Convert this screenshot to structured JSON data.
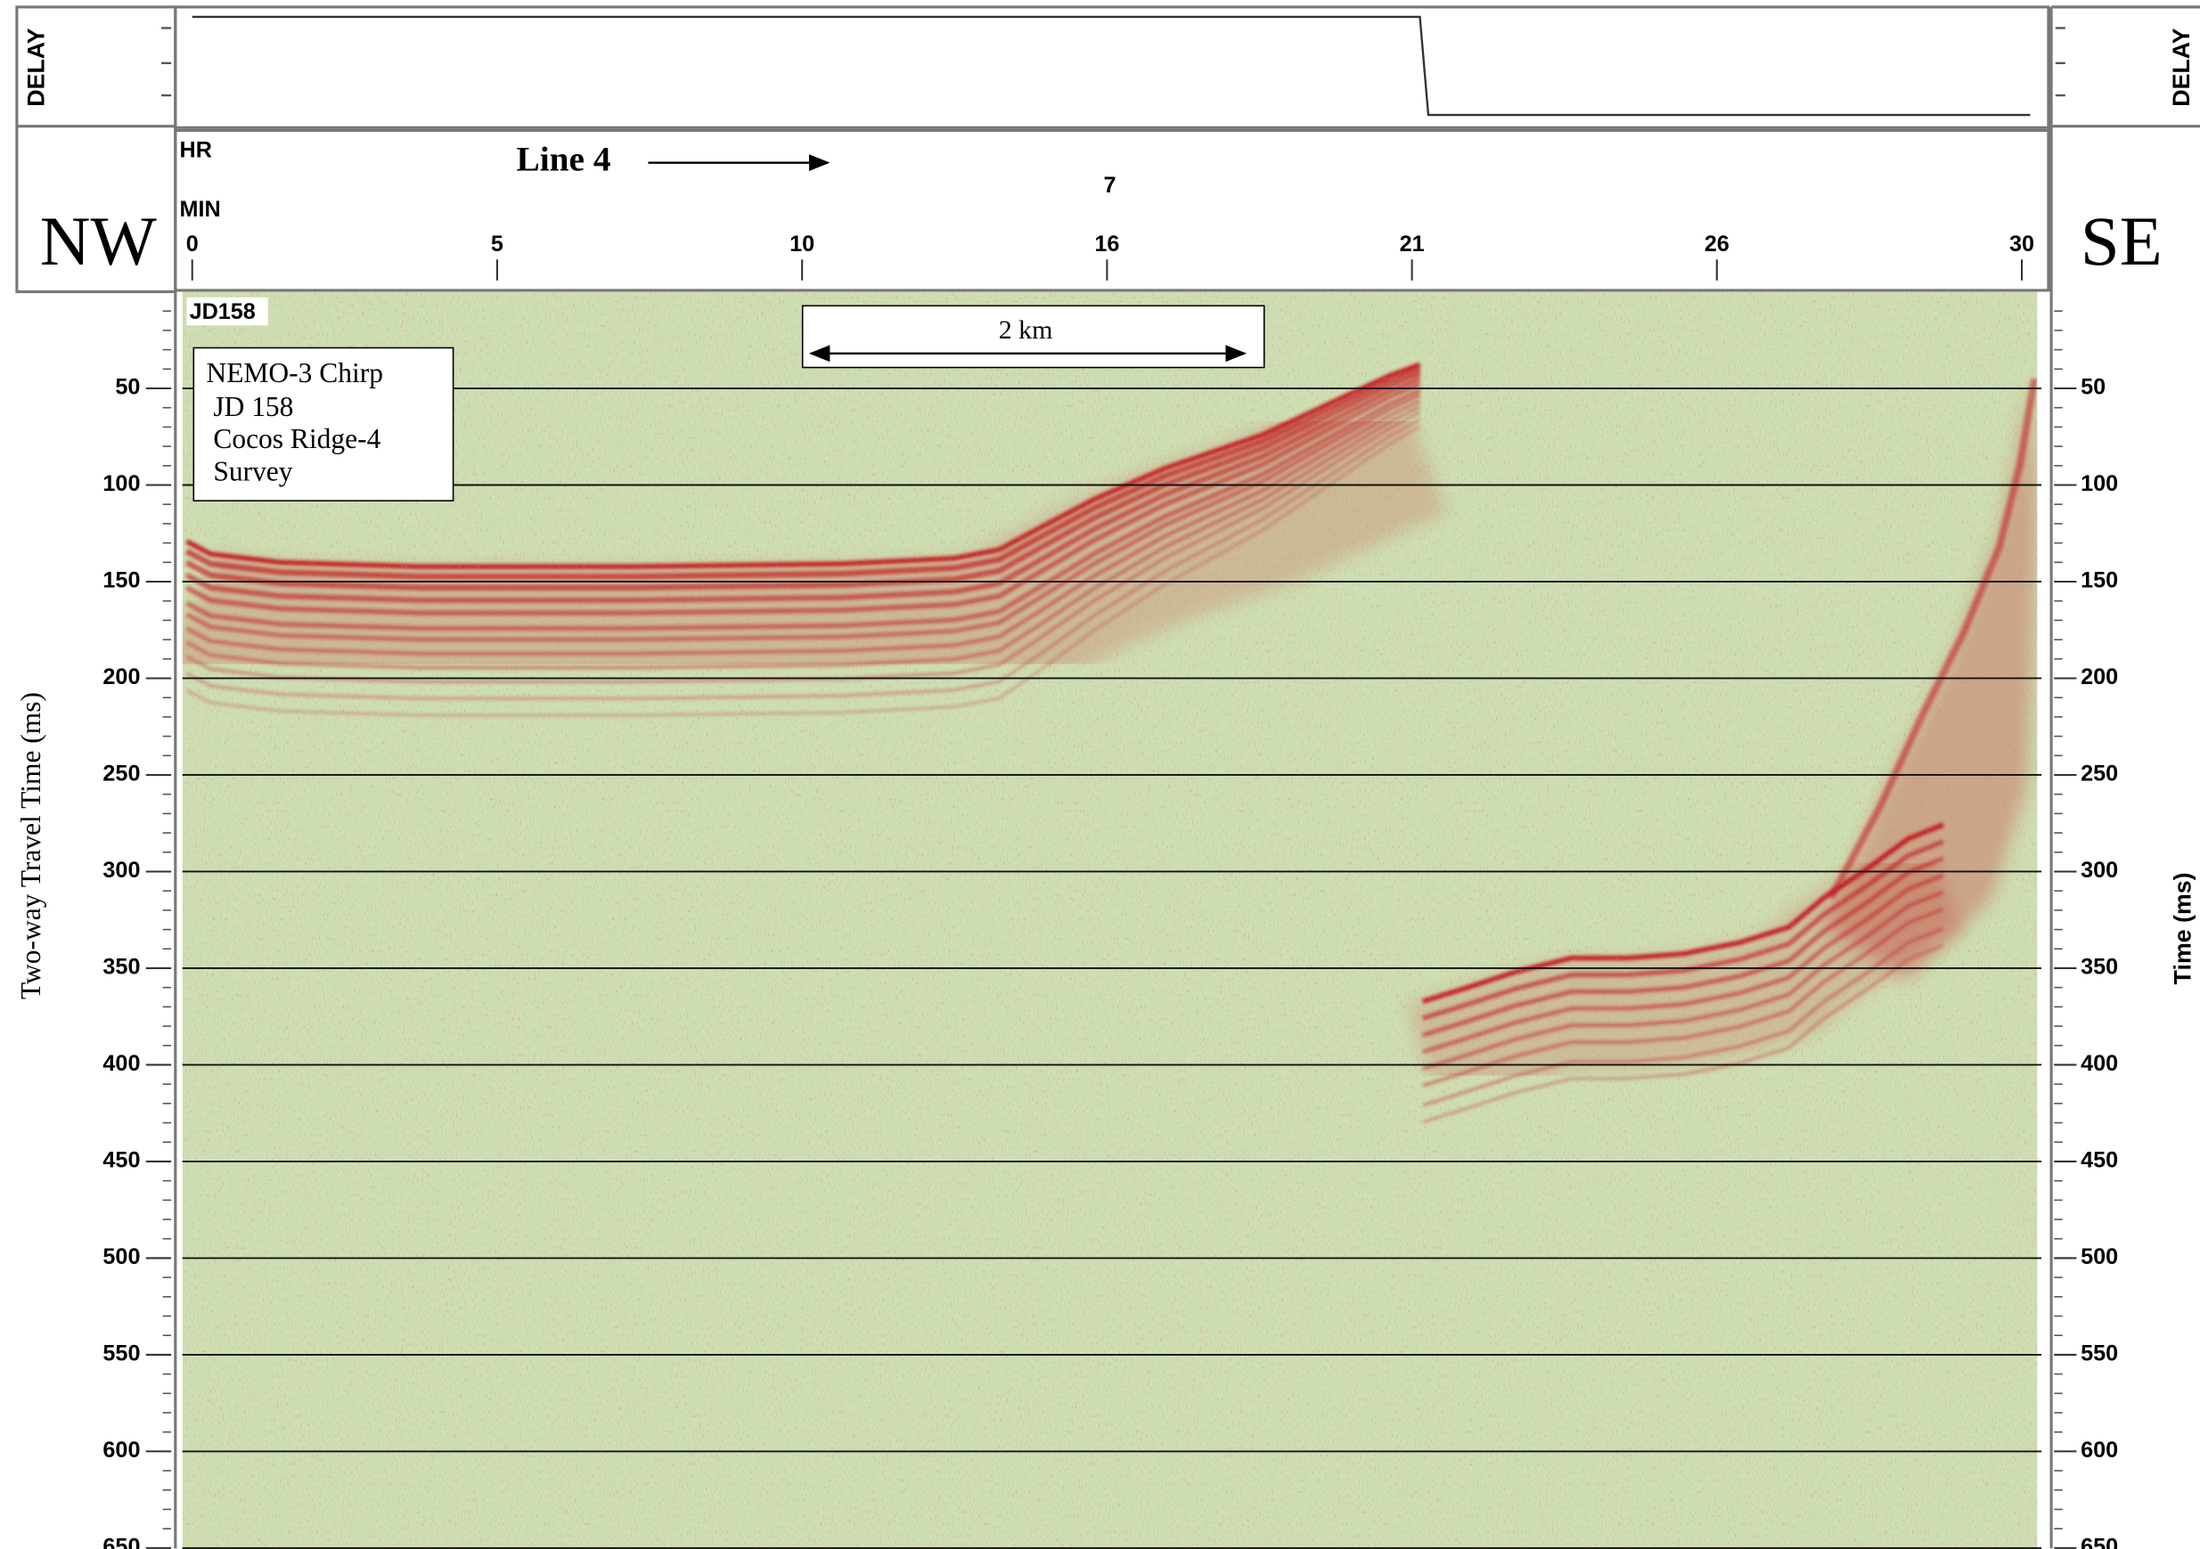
{
  "chart_data": {
    "type": "seismic-profile",
    "delay_label": "DELAY",
    "left_direction": "NW",
    "right_direction": "SE",
    "hour_label_name": "HR",
    "minute_label_name": "MIN",
    "line_label": "Line 4",
    "hour_value": "7",
    "xticks": [
      0,
      5,
      10,
      16,
      21,
      26,
      30
    ],
    "record_id": "JD158",
    "scale_label": "2 km",
    "legend_lines": [
      "NEMO-3 Chirp",
      "JD 158",
      "Cocos Ridge-4",
      "Survey"
    ],
    "ylabel": "Two-way Travel Time (ms)",
    "y2label": "Time (ms)",
    "ylim": [
      0,
      650
    ],
    "yticks": [
      50,
      100,
      150,
      200,
      250,
      300,
      350,
      400,
      450,
      500,
      550,
      600,
      650
    ],
    "y2lim": [
      0,
      650
    ],
    "y2ticks": [
      50,
      100,
      150,
      200,
      250,
      300,
      350,
      400,
      450,
      500,
      550,
      600,
      650
    ],
    "grid": true,
    "background_color": "#cddfb2",
    "reflector_color": "#c2121c"
  }
}
